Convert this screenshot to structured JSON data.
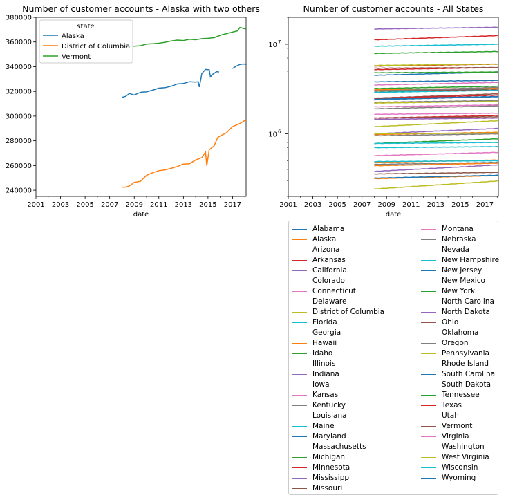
{
  "chart_data": [
    {
      "type": "line",
      "title": "Number of customer accounts - Alaska with two others",
      "xlabel": "date",
      "ylabel": "",
      "xlim": [
        2001.0,
        2018.1
      ],
      "ylim": [
        235000,
        380000
      ],
      "xticks": [
        "2001",
        "2003",
        "2005",
        "2007",
        "2009",
        "2011",
        "2013",
        "2015",
        "2017"
      ],
      "yticks": [
        "240000",
        "260000",
        "280000",
        "300000",
        "320000",
        "340000",
        "360000",
        "380000"
      ],
      "legend": {
        "title": "state",
        "placement": "upper-left"
      },
      "series": [
        {
          "name": "Alaska",
          "color": "#1f77b4",
          "points": [
            [
              2008.0,
              315200
            ],
            [
              2008.3,
              316000
            ],
            [
              2008.6,
              318300
            ],
            [
              2009.0,
              317000
            ],
            [
              2009.3,
              318500
            ],
            [
              2009.6,
              319400
            ],
            [
              2010.0,
              319600
            ],
            [
              2010.5,
              321000
            ],
            [
              2011.0,
              322600
            ],
            [
              2011.5,
              323000
            ],
            [
              2012.0,
              324200
            ],
            [
              2012.5,
              326000
            ],
            [
              2013.0,
              326400
            ],
            [
              2013.5,
              327800
            ],
            [
              2014.0,
              327500
            ],
            [
              2014.2,
              327800
            ],
            [
              2014.3,
              323500
            ],
            [
              2014.5,
              334500
            ],
            [
              2014.8,
              337800
            ],
            [
              2015.1,
              337500
            ],
            [
              2015.2,
              331800
            ],
            [
              2015.4,
              334000
            ],
            [
              2015.7,
              336000
            ],
            [
              2015.9,
              335700
            ],
            [
              null,
              null
            ],
            [
              2017.0,
              338500
            ],
            [
              2017.3,
              340500
            ],
            [
              2017.6,
              341800
            ],
            [
              2017.9,
              342200
            ],
            [
              2018.1,
              341700
            ]
          ]
        },
        {
          "name": "District of Columbia",
          "color": "#ff7f0e",
          "points": [
            [
              2008.0,
              242500
            ],
            [
              2008.3,
              242500
            ],
            [
              2008.6,
              243400
            ],
            [
              2009.0,
              246300
            ],
            [
              2009.5,
              247200
            ],
            [
              2010.0,
              252000
            ],
            [
              2010.5,
              254200
            ],
            [
              2011.0,
              255800
            ],
            [
              2011.5,
              256500
            ],
            [
              2012.0,
              257800
            ],
            [
              2012.5,
              259200
            ],
            [
              2013.0,
              261200
            ],
            [
              2013.5,
              261500
            ],
            [
              2014.0,
              264500
            ],
            [
              2014.5,
              266400
            ],
            [
              2014.8,
              271000
            ],
            [
              2014.9,
              259800
            ],
            [
              2015.1,
              272800
            ],
            [
              2015.5,
              276000
            ],
            [
              2015.8,
              282800
            ],
            [
              2016.0,
              284000
            ],
            [
              2016.5,
              286500
            ],
            [
              2017.0,
              291500
            ],
            [
              2017.5,
              293500
            ],
            [
              2018.1,
              297000
            ]
          ]
        },
        {
          "name": "Vermont",
          "color": "#2ca02c",
          "points": [
            [
              2008.0,
              356200
            ],
            [
              2008.5,
              356800
            ],
            [
              2009.0,
              356600
            ],
            [
              2009.5,
              357000
            ],
            [
              2010.0,
              358300
            ],
            [
              2010.5,
              358600
            ],
            [
              2011.0,
              359000
            ],
            [
              2011.5,
              359800
            ],
            [
              2012.0,
              360800
            ],
            [
              2012.5,
              361500
            ],
            [
              2013.0,
              361200
            ],
            [
              2013.5,
              362200
            ],
            [
              2014.0,
              361800
            ],
            [
              2014.5,
              362700
            ],
            [
              2015.0,
              363000
            ],
            [
              2015.5,
              363500
            ],
            [
              2016.0,
              365500
            ],
            [
              2016.5,
              366800
            ],
            [
              2017.0,
              368000
            ],
            [
              2017.4,
              369000
            ],
            [
              2017.6,
              371800
            ],
            [
              2018.1,
              370500
            ]
          ]
        }
      ]
    },
    {
      "type": "line",
      "title": "Number of customer accounts - All States",
      "xlabel": "date",
      "ylabel": "",
      "yscale": "log",
      "xlim": [
        2001.0,
        2018.1
      ],
      "ylim": [
        200000,
        20000000
      ],
      "xticks": [
        "2001",
        "2003",
        "2005",
        "2007",
        "2009",
        "2011",
        "2013",
        "2015",
        "2017"
      ],
      "yticks": [
        {
          "value": 1000000,
          "base": "10",
          "exp": "6"
        },
        {
          "value": 10000000,
          "base": "10",
          "exp": "7"
        }
      ],
      "x_start": 2008.0,
      "x_end": 2018.1,
      "legend": {
        "placement": "below",
        "columns": 2
      },
      "series": [
        {
          "name": "Alabama",
          "color": "#1f77b4",
          "start": 2500000,
          "end": 2600000
        },
        {
          "name": "Alaska",
          "color": "#ff7f0e",
          "start": 315000,
          "end": 342000
        },
        {
          "name": "Arizona",
          "color": "#2ca02c",
          "start": 2900000,
          "end": 3200000
        },
        {
          "name": "Arkansas",
          "color": "#d62728",
          "start": 1500000,
          "end": 1600000
        },
        {
          "name": "California",
          "color": "#9467bd",
          "start": 14800000,
          "end": 15500000
        },
        {
          "name": "Colorado",
          "color": "#8c564b",
          "start": 2500000,
          "end": 2800000
        },
        {
          "name": "Connecticut",
          "color": "#e377c2",
          "start": 1650000,
          "end": 1700000
        },
        {
          "name": "Delaware",
          "color": "#7f7f7f",
          "start": 455000,
          "end": 480000
        },
        {
          "name": "District of Columbia",
          "color": "#bcbd22",
          "start": 242000,
          "end": 297000
        },
        {
          "name": "Florida",
          "color": "#17becf",
          "start": 9500000,
          "end": 10000000
        },
        {
          "name": "Georgia",
          "color": "#1f77b4",
          "start": 4500000,
          "end": 4900000
        },
        {
          "name": "Hawaii",
          "color": "#ff7f0e",
          "start": 480000,
          "end": 510000
        },
        {
          "name": "Idaho",
          "color": "#2ca02c",
          "start": 780000,
          "end": 880000
        },
        {
          "name": "Illinois",
          "color": "#d62728",
          "start": 5700000,
          "end": 6000000
        },
        {
          "name": "Indiana",
          "color": "#9467bd",
          "start": 3050000,
          "end": 3200000
        },
        {
          "name": "Iowa",
          "color": "#8c564b",
          "start": 1500000,
          "end": 1550000
        },
        {
          "name": "Kansas",
          "color": "#e377c2",
          "start": 1450000,
          "end": 1500000
        },
        {
          "name": "Kentucky",
          "color": "#7f7f7f",
          "start": 2250000,
          "end": 2350000
        },
        {
          "name": "Louisiana",
          "color": "#bcbd22",
          "start": 2200000,
          "end": 2300000
        },
        {
          "name": "Maine",
          "color": "#17becf",
          "start": 780000,
          "end": 800000
        },
        {
          "name": "Maryland",
          "color": "#1f77b4",
          "start": 2450000,
          "end": 2600000
        },
        {
          "name": "Massachusetts",
          "color": "#ff7f0e",
          "start": 3100000,
          "end": 3250000
        },
        {
          "name": "Michigan",
          "color": "#2ca02c",
          "start": 4800000,
          "end": 4900000
        },
        {
          "name": "Minnesota",
          "color": "#d62728",
          "start": 2500000,
          "end": 2700000
        },
        {
          "name": "Mississippi",
          "color": "#9467bd",
          "start": 1450000,
          "end": 1500000
        },
        {
          "name": "Missouri",
          "color": "#8c564b",
          "start": 3000000,
          "end": 3100000
        },
        {
          "name": "Montana",
          "color": "#e377c2",
          "start": 570000,
          "end": 620000
        },
        {
          "name": "Nebraska",
          "color": "#7f7f7f",
          "start": 950000,
          "end": 1000000
        },
        {
          "name": "Nevada",
          "color": "#bcbd22",
          "start": 1200000,
          "end": 1400000
        },
        {
          "name": "New Hampshire",
          "color": "#17becf",
          "start": 700000,
          "end": 720000
        },
        {
          "name": "New Jersey",
          "color": "#1f77b4",
          "start": 3800000,
          "end": 3950000
        },
        {
          "name": "New Mexico",
          "color": "#ff7f0e",
          "start": 980000,
          "end": 1040000
        },
        {
          "name": "New York",
          "color": "#2ca02c",
          "start": 7900000,
          "end": 8300000
        },
        {
          "name": "North Carolina",
          "color": "#d62728",
          "start": 5200000,
          "end": 5500000
        },
        {
          "name": "North Dakota",
          "color": "#9467bd",
          "start": 380000,
          "end": 450000
        },
        {
          "name": "Ohio",
          "color": "#8c564b",
          "start": 5400000,
          "end": 5500000
        },
        {
          "name": "Oklahoma",
          "color": "#e377c2",
          "start": 2000000,
          "end": 2100000
        },
        {
          "name": "Oregon",
          "color": "#7f7f7f",
          "start": 1900000,
          "end": 2050000
        },
        {
          "name": "Pennsylvania",
          "color": "#bcbd22",
          "start": 5800000,
          "end": 6000000
        },
        {
          "name": "Rhode Island",
          "color": "#17becf",
          "start": 490000,
          "end": 500000
        },
        {
          "name": "South Carolina",
          "color": "#1f77b4",
          "start": 2400000,
          "end": 2600000
        },
        {
          "name": "South Dakota",
          "color": "#ff7f0e",
          "start": 440000,
          "end": 470000
        },
        {
          "name": "Tennessee",
          "color": "#2ca02c",
          "start": 3200000,
          "end": 3400000
        },
        {
          "name": "Texas",
          "color": "#d62728",
          "start": 11200000,
          "end": 12500000
        },
        {
          "name": "Utah",
          "color": "#9467bd",
          "start": 1000000,
          "end": 1150000
        },
        {
          "name": "Vermont",
          "color": "#8c564b",
          "start": 356000,
          "end": 371000
        },
        {
          "name": "Virginia",
          "color": "#e377c2",
          "start": 3500000,
          "end": 3750000
        },
        {
          "name": "Washington",
          "color": "#7f7f7f",
          "start": 3000000,
          "end": 3300000
        },
        {
          "name": "West Virginia",
          "color": "#bcbd22",
          "start": 1000000,
          "end": 1020000
        },
        {
          "name": "Wisconsin",
          "color": "#17becf",
          "start": 2900000,
          "end": 3050000
        },
        {
          "name": "Wyoming",
          "color": "#1f77b4",
          "start": 320000,
          "end": 345000
        }
      ]
    }
  ]
}
